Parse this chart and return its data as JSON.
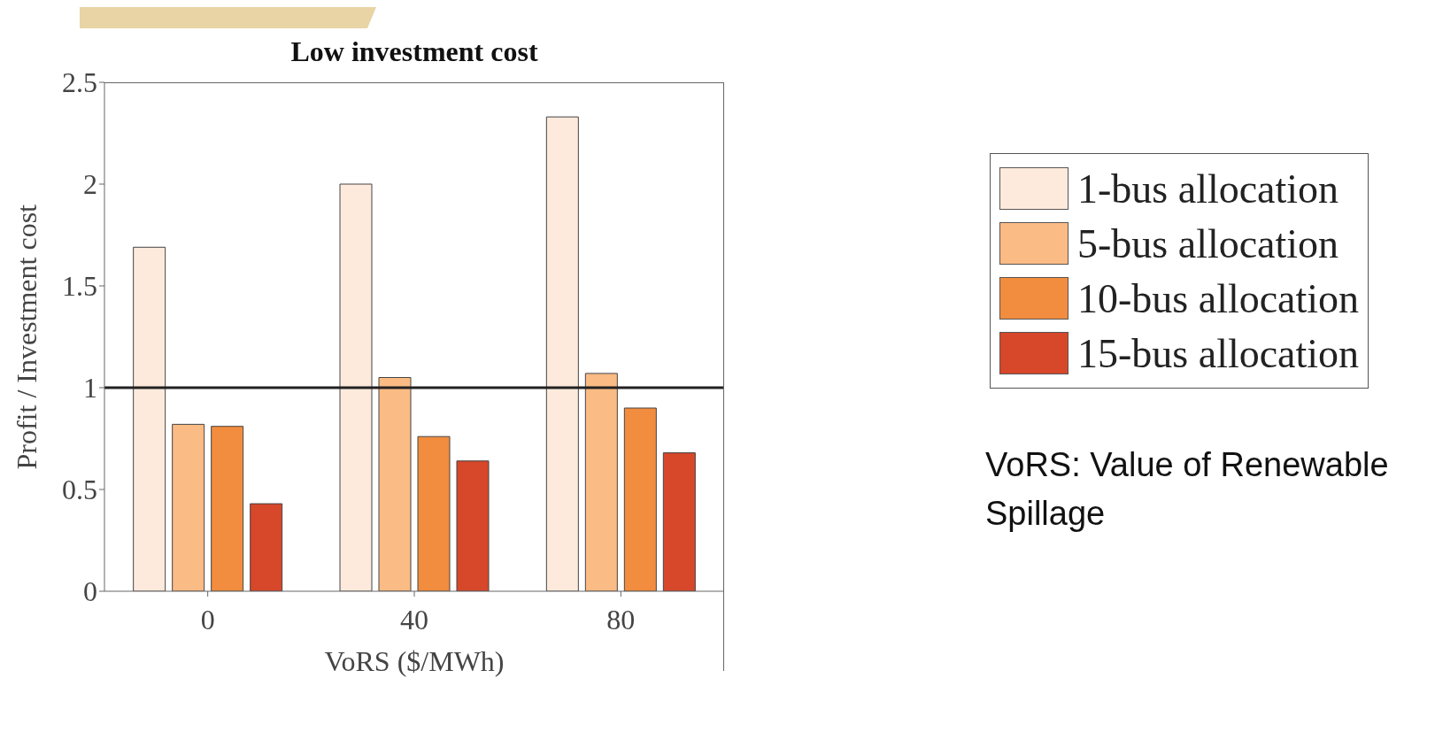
{
  "chart_data": {
    "type": "bar",
    "title": "Low investment cost",
    "xlabel": "VoRS ($/MWh)",
    "ylabel": "Profit / Investment cost",
    "categories": [
      "0",
      "40",
      "80"
    ],
    "series": [
      {
        "name": "1-bus allocation",
        "color": "#fdeadc",
        "values": [
          1.69,
          2.0,
          2.33
        ]
      },
      {
        "name": "5-bus allocation",
        "color": "#fbbb84",
        "values": [
          0.82,
          1.05,
          1.07
        ]
      },
      {
        "name": "10-bus allocation",
        "color": "#f28c3e",
        "values": [
          0.81,
          0.76,
          0.9
        ]
      },
      {
        "name": "15-bus allocation",
        "color": "#d7472a",
        "values": [
          0.43,
          0.64,
          0.68
        ]
      }
    ],
    "ylim": [
      0,
      2.5
    ],
    "yticks": [
      0,
      0.5,
      1,
      1.5,
      2,
      2.5
    ],
    "ref_lines": [
      {
        "axis": "y",
        "value": 1,
        "color": "#222222"
      }
    ],
    "grid": false,
    "legend": "right",
    "annotations": [
      "VoRS: Value of Renewable Spillage"
    ]
  }
}
